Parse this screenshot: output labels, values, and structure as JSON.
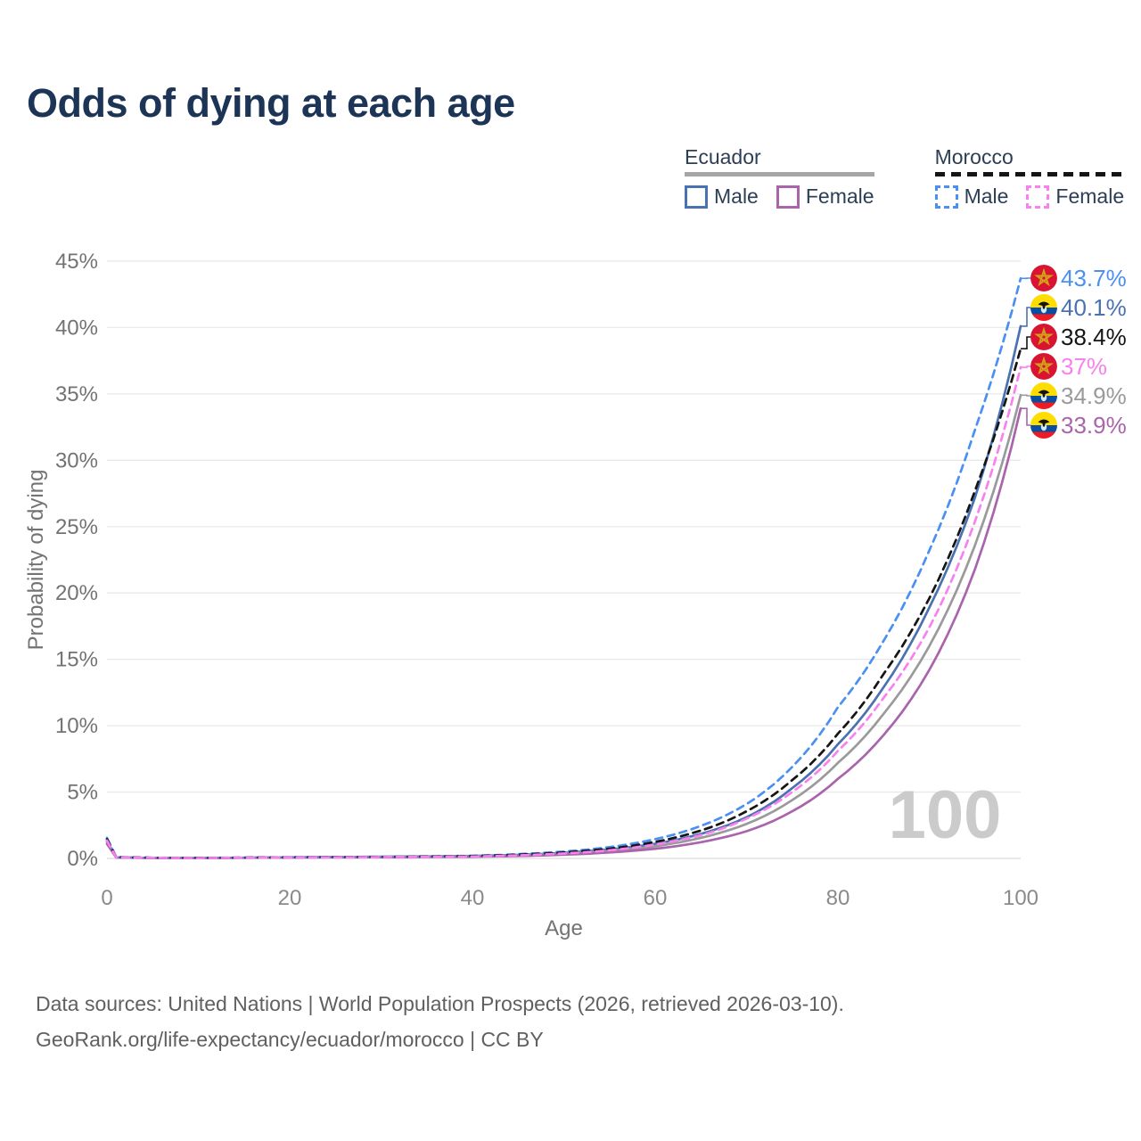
{
  "title": "Odds of dying at each age",
  "legend": {
    "groups": [
      {
        "country": "Ecuador",
        "underline_style": "solid",
        "underline_color": "#a6a6a6",
        "items": [
          {
            "label": "Male",
            "color": "#4a72b0",
            "dash": false
          },
          {
            "label": "Female",
            "color": "#a964ab",
            "dash": false
          }
        ]
      },
      {
        "country": "Morocco",
        "underline_style": "dashed",
        "underline_color": "#151515",
        "items": [
          {
            "label": "Male",
            "color": "#4a90f2",
            "dash": true
          },
          {
            "label": "Female",
            "color": "#f980ef",
            "dash": true
          }
        ]
      }
    ]
  },
  "chart_data": {
    "type": "line",
    "title": "Odds of dying at each age",
    "xlabel": "Age",
    "ylabel": "Probability of dying",
    "xlim": [
      0,
      100
    ],
    "ylim": [
      0,
      45
    ],
    "x_ticks": [
      0,
      20,
      40,
      60,
      80,
      100
    ],
    "y_ticks": [
      0,
      5,
      10,
      15,
      20,
      25,
      30,
      35,
      40,
      45
    ],
    "y_tick_suffix": "%",
    "grid": true,
    "watermark": "100",
    "ages": [
      0,
      1,
      5,
      10,
      20,
      30,
      40,
      45,
      50,
      55,
      60,
      65,
      70,
      75,
      80,
      85,
      90,
      95,
      100
    ],
    "series": [
      {
        "name": "Morocco Male",
        "flag": "morocco",
        "dash": true,
        "color": "#4a90f2",
        "end_label": "43.7%",
        "end_value": 43.7,
        "values": [
          1.55,
          0.1,
          0.05,
          0.04,
          0.09,
          0.12,
          0.2,
          0.32,
          0.52,
          0.85,
          1.45,
          2.45,
          4.1,
          6.9,
          11.4,
          16.4,
          23.2,
          32.3,
          43.7
        ]
      },
      {
        "name": "Ecuador Male",
        "flag": "ecuador",
        "dash": false,
        "color": "#4a72b0",
        "end_label": "40.1%",
        "end_value": 40.1,
        "values": [
          1.3,
          0.09,
          0.04,
          0.03,
          0.09,
          0.13,
          0.19,
          0.27,
          0.42,
          0.68,
          1.1,
          1.85,
          3.1,
          5.3,
          8.6,
          12.9,
          18.9,
          27.2,
          40.1
        ]
      },
      {
        "name": "Morocco Both",
        "flag": "morocco",
        "dash": true,
        "color": "#151515",
        "end_label": "38.4%",
        "end_value": 38.4,
        "values": [
          1.45,
          0.09,
          0.05,
          0.04,
          0.08,
          0.11,
          0.18,
          0.28,
          0.45,
          0.73,
          1.25,
          2.1,
          3.55,
          5.9,
          9.4,
          13.9,
          19.6,
          27.7,
          38.4
        ]
      },
      {
        "name": "Morocco Female",
        "flag": "morocco",
        "dash": true,
        "color": "#f980ef",
        "end_label": "37%",
        "end_value": 37.0,
        "values": [
          1.35,
          0.08,
          0.04,
          0.03,
          0.07,
          0.1,
          0.15,
          0.23,
          0.37,
          0.61,
          1.05,
          1.75,
          3.0,
          5.0,
          8.1,
          12.1,
          17.4,
          25.4,
          37.0
        ]
      },
      {
        "name": "Ecuador Both",
        "flag": "ecuador",
        "dash": false,
        "color": "#9a9a9a",
        "end_label": "34.9%",
        "end_value": 34.9,
        "values": [
          1.2,
          0.08,
          0.04,
          0.03,
          0.08,
          0.11,
          0.16,
          0.23,
          0.36,
          0.57,
          0.92,
          1.55,
          2.6,
          4.4,
          7.2,
          10.9,
          16.0,
          23.6,
          34.9
        ]
      },
      {
        "name": "Ecuador Female",
        "flag": "ecuador",
        "dash": false,
        "color": "#a964ab",
        "end_label": "33.9%",
        "end_value": 33.9,
        "values": [
          1.1,
          0.07,
          0.03,
          0.03,
          0.07,
          0.09,
          0.13,
          0.18,
          0.28,
          0.45,
          0.73,
          1.22,
          2.05,
          3.55,
          6.0,
          9.3,
          14.2,
          21.8,
          33.9
        ]
      }
    ]
  },
  "footer": {
    "line1": "Data sources: United Nations | World Population Prospects (2026, retrieved 2026-03-10).",
    "line2": "GeoRank.org/life-expectancy/ecuador/morocco | CC BY"
  }
}
